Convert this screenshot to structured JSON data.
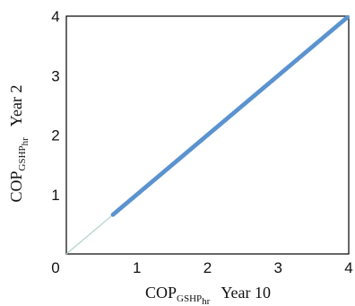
{
  "chart_data": {
    "type": "scatter",
    "xlabel": {
      "main": "COP",
      "sub": "GSHP",
      "subsub": "hr",
      "suffix": "Year 10"
    },
    "ylabel": {
      "main": "COP",
      "sub": "GSHP",
      "subsub": "hr",
      "suffix": "Year 2"
    },
    "xlim": [
      0,
      4
    ],
    "ylim": [
      0,
      4
    ],
    "xticks": [
      0,
      1,
      2,
      3,
      4
    ],
    "yticks": [
      1,
      2,
      3,
      4
    ],
    "grid": false,
    "reference_line": {
      "from": [
        0,
        0
      ],
      "to": [
        4,
        4
      ]
    },
    "series": [
      {
        "x_range": [
          0.66,
          3.98
        ],
        "relation": "y = x",
        "color": "#5b93cf"
      }
    ],
    "reference_color": "#b7d3cf"
  }
}
